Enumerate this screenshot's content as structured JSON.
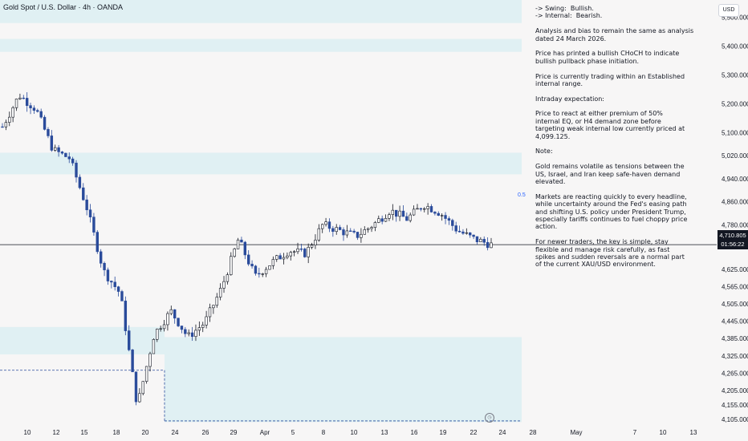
{
  "header": {
    "title": "Gold Spot / U.S. Dollar · 4h · OANDA"
  },
  "axis": {
    "currency": "USD",
    "price_ticks": [
      "5,500.000",
      "5,400.000",
      "5,300.000",
      "5,200.000",
      "5,100.000",
      "5,020.000",
      "4,940.000",
      "4,860.000",
      "4,780.000",
      "4,625.000",
      "4,565.000",
      "4,505.000",
      "4,445.000",
      "4,385.000",
      "4,325.000",
      "4,265.000",
      "4,205.000",
      "4,155.000",
      "4,105.000"
    ],
    "date_ticks": [
      "10",
      "12",
      "15",
      "18",
      "20",
      "24",
      "26",
      "29",
      "Apr",
      "5",
      "8",
      "10",
      "13",
      "16",
      "19",
      "22",
      "24",
      "28",
      "May",
      "7",
      "10",
      "13"
    ]
  },
  "current_price": {
    "price": "4,710.805",
    "countdown": "01:56:22"
  },
  "fib_label": "0.5",
  "notes": [
    "-> Swing:  Bullish.",
    "-> Internal:  Bearish.",
    "",
    "Analysis and bias to remain the same as analysis",
    "dated 24 March 2026.",
    "",
    "Price has printed a bullish CHoCH to indicate",
    "bullish pullback phase initiation.",
    "",
    "Price is currently trading within an Established",
    "internal range.",
    "",
    "Intraday expectation:",
    "",
    "Price to react at either premium of 50%",
    "internal EQ, or H4 demand zone before",
    "targeting weak internal low currently priced at",
    "4,099.125.",
    "",
    "Note:",
    "",
    "Gold remains volatile as tensions between the",
    "US, Israel, and Iran keep safe-haven demand",
    "elevated.",
    "",
    "Markets are reacting quickly to every headline,",
    "while uncertainty around the Fed's easing path",
    "and shifting U.S. policy under President Trump,",
    "especially tariffs continues to fuel choppy price",
    "action.",
    "",
    "For newer traders, the key is simple, stay",
    "flexible and manage risk carefully, as fast",
    "spikes and sudden reversals are a normal part",
    "of the current XAU/USD environment."
  ],
  "chart_data": {
    "type": "candlestick",
    "title": "Gold Spot / U.S. Dollar · 4h · OANDA",
    "xlabel": "",
    "ylabel": "",
    "ylim": [
      4085,
      5560
    ],
    "grid": false,
    "colors": {
      "up": "#131722",
      "down": "#2a4b9b",
      "zone": "#dceef2",
      "background": "#f7f6f6"
    },
    "zones": [
      {
        "from": 5480,
        "to": 5560
      },
      {
        "from": 5380,
        "to": 5425
      },
      {
        "from": 4955,
        "to": 5030
      },
      {
        "from": 4330,
        "to": 4425
      },
      {
        "from": 4095,
        "to": 4390
      }
    ],
    "levels": [
      {
        "name": "current price",
        "value": 4710.805
      },
      {
        "name": "weak internal low",
        "value": 4099.125
      },
      {
        "name": "equilibrium 0.5",
        "value": 4847
      }
    ],
    "candles_approx": [
      {
        "t": "Mar 9",
        "close": 5120
      },
      {
        "t": "Mar 11",
        "close": 5230
      },
      {
        "t": "Mar 12",
        "close": 5180
      },
      {
        "t": "Mar 13",
        "close": 5040
      },
      {
        "t": "Mar 17",
        "close": 5010
      },
      {
        "t": "Mar 18",
        "close": 4840
      },
      {
        "t": "Mar 19",
        "close": 4620
      },
      {
        "t": "Mar 20",
        "close": 4540
      },
      {
        "t": "Mar 23",
        "close": 4150
      },
      {
        "t": "Mar 24",
        "close": 4400
      },
      {
        "t": "Mar 25",
        "close": 4480
      },
      {
        "t": "Mar 26",
        "close": 4390
      },
      {
        "t": "Mar 27",
        "close": 4440
      },
      {
        "t": "Mar 30",
        "close": 4560
      },
      {
        "t": "Apr 1",
        "close": 4730
      },
      {
        "t": "Apr 2",
        "close": 4600
      },
      {
        "t": "Apr 3",
        "close": 4650
      },
      {
        "t": "Apr 6",
        "close": 4690
      },
      {
        "t": "Apr 7",
        "close": 4680
      },
      {
        "t": "Apr 8",
        "close": 4780
      },
      {
        "t": "Apr 9",
        "close": 4760
      },
      {
        "t": "Apr 10",
        "close": 4740
      },
      {
        "t": "Apr 13",
        "close": 4780
      },
      {
        "t": "Apr 14",
        "close": 4830
      },
      {
        "t": "Apr 16",
        "close": 4800
      },
      {
        "t": "Apr 17",
        "close": 4850
      },
      {
        "t": "Apr 20",
        "close": 4820
      },
      {
        "t": "Apr 21",
        "close": 4760
      },
      {
        "t": "Apr 22",
        "close": 4730
      },
      {
        "t": "Apr 23",
        "close": 4711
      }
    ]
  }
}
